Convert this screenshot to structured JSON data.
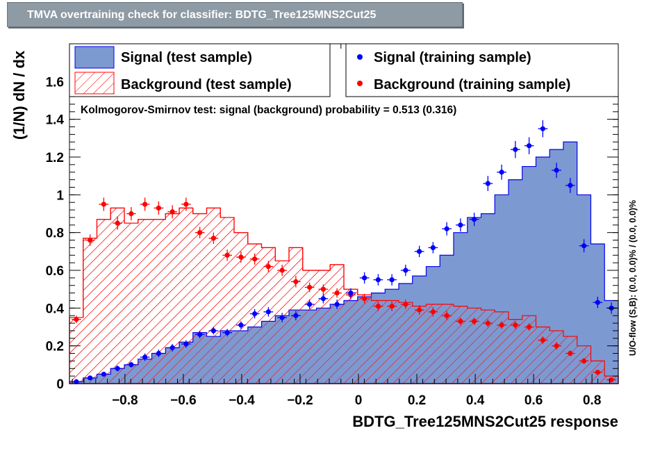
{
  "window": {
    "title": "TMVA overtraining check for classifier: BDTG_Tree125MNS2Cut25"
  },
  "legend": {
    "signal_test": "Signal (test sample)",
    "background_test": "Background (test sample)",
    "signal_training": "Signal (training sample)",
    "background_training": "Background (training sample)"
  },
  "annotation": "Kolmogorov-Smirnov test: signal (background) probability = 0.513 (0.316)",
  "side_label": "U/O-flow (S,B): (0.0, 0.0)% / (0.0, 0.0)%",
  "colors": {
    "signal": "#7d99d1",
    "signal_edge": "#0000ee",
    "background": "#ff0000",
    "training_signal": "#0000ff",
    "training_background": "#ff0000",
    "title_bg": "#8e9aa4"
  },
  "chart_data": {
    "type": "histogram",
    "title": "TMVA overtraining check for classifier: BDTG_Tree125MNS2Cut25",
    "xlabel": "BDTG_Tree125MNS2Cut25 response",
    "ylabel": "(1/N) dN / dx",
    "xlim": [
      -0.99,
      0.89
    ],
    "ylim": [
      0,
      1.8
    ],
    "x_ticks": [
      -0.8,
      -0.6,
      -0.4,
      -0.2,
      0,
      0.2,
      0.4,
      0.6,
      0.8
    ],
    "x_tick_labels": [
      "−0.8",
      "−0.6",
      "−0.4",
      "−0.2",
      "0",
      "0.2",
      "0.4",
      "0.6",
      "0.8"
    ],
    "y_ticks": [
      0,
      0.2,
      0.4,
      0.6,
      0.8,
      1,
      1.2,
      1.4,
      1.6
    ],
    "y_tick_labels": [
      "0",
      "0.2",
      "0.4",
      "0.6",
      "0.8",
      "1",
      "1.2",
      "1.4",
      "1.6"
    ],
    "bin_edges_range": [
      -0.99,
      0.89
    ],
    "n_bins": 40,
    "series": [
      {
        "name": "Signal (test sample)",
        "style": "filled",
        "values": [
          0.01,
          0.03,
          0.05,
          0.08,
          0.1,
          0.13,
          0.16,
          0.19,
          0.22,
          0.27,
          0.25,
          0.28,
          0.28,
          0.3,
          0.33,
          0.36,
          0.39,
          0.39,
          0.4,
          0.42,
          0.44,
          0.46,
          0.48,
          0.5,
          0.53,
          0.57,
          0.62,
          0.68,
          0.8,
          0.88,
          0.9,
          1.0,
          1.08,
          1.15,
          1.2,
          1.24,
          1.28,
          1.0,
          0.74,
          0.44
        ]
      },
      {
        "name": "Background (test sample)",
        "style": "hatched",
        "values": [
          0.35,
          0.77,
          0.87,
          0.93,
          0.85,
          0.87,
          0.87,
          0.9,
          0.93,
          0.9,
          0.93,
          0.88,
          0.8,
          0.74,
          0.72,
          0.65,
          0.72,
          0.6,
          0.6,
          0.63,
          0.5,
          0.47,
          0.44,
          0.44,
          0.43,
          0.41,
          0.42,
          0.42,
          0.41,
          0.4,
          0.39,
          0.38,
          0.34,
          0.36,
          0.3,
          0.28,
          0.25,
          0.2,
          0.12,
          0.04
        ]
      },
      {
        "name": "Signal (training sample)",
        "style": "markers",
        "values": [
          0.01,
          0.03,
          0.05,
          0.08,
          0.1,
          0.14,
          0.16,
          0.19,
          0.21,
          0.26,
          0.28,
          0.27,
          0.31,
          0.37,
          0.38,
          0.35,
          0.36,
          0.42,
          0.45,
          0.42,
          0.48,
          0.56,
          0.55,
          0.55,
          0.6,
          0.7,
          0.72,
          0.82,
          0.84,
          0.87,
          1.06,
          1.12,
          1.24,
          1.26,
          1.35,
          1.13,
          1.05,
          0.73,
          0.43,
          0.4
        ],
        "errors": [
          0.01,
          0.01,
          0.01,
          0.015,
          0.015,
          0.02,
          0.02,
          0.02,
          0.02,
          0.02,
          0.02,
          0.02,
          0.02,
          0.025,
          0.025,
          0.025,
          0.025,
          0.025,
          0.025,
          0.025,
          0.025,
          0.03,
          0.03,
          0.03,
          0.03,
          0.03,
          0.03,
          0.035,
          0.035,
          0.035,
          0.04,
          0.04,
          0.045,
          0.045,
          0.045,
          0.04,
          0.04,
          0.035,
          0.03,
          0.03
        ]
      },
      {
        "name": "Background (training sample)",
        "style": "markers",
        "values": [
          0.34,
          0.76,
          0.95,
          0.85,
          0.9,
          0.95,
          0.93,
          0.91,
          0.95,
          0.8,
          0.77,
          0.68,
          0.67,
          0.66,
          0.62,
          0.6,
          0.54,
          0.51,
          0.5,
          0.48,
          0.47,
          0.45,
          0.41,
          0.41,
          0.42,
          0.39,
          0.38,
          0.36,
          0.33,
          0.33,
          0.32,
          0.31,
          0.31,
          0.3,
          0.23,
          0.2,
          0.16,
          0.12,
          0.06,
          0.02
        ],
        "errors": [
          0.02,
          0.03,
          0.035,
          0.035,
          0.035,
          0.035,
          0.035,
          0.035,
          0.035,
          0.03,
          0.03,
          0.03,
          0.03,
          0.03,
          0.03,
          0.03,
          0.03,
          0.025,
          0.025,
          0.025,
          0.025,
          0.025,
          0.025,
          0.025,
          0.025,
          0.025,
          0.025,
          0.025,
          0.02,
          0.02,
          0.02,
          0.02,
          0.02,
          0.02,
          0.02,
          0.02,
          0.015,
          0.015,
          0.01,
          0.01
        ]
      }
    ],
    "legend_position": "top",
    "grid": false
  }
}
